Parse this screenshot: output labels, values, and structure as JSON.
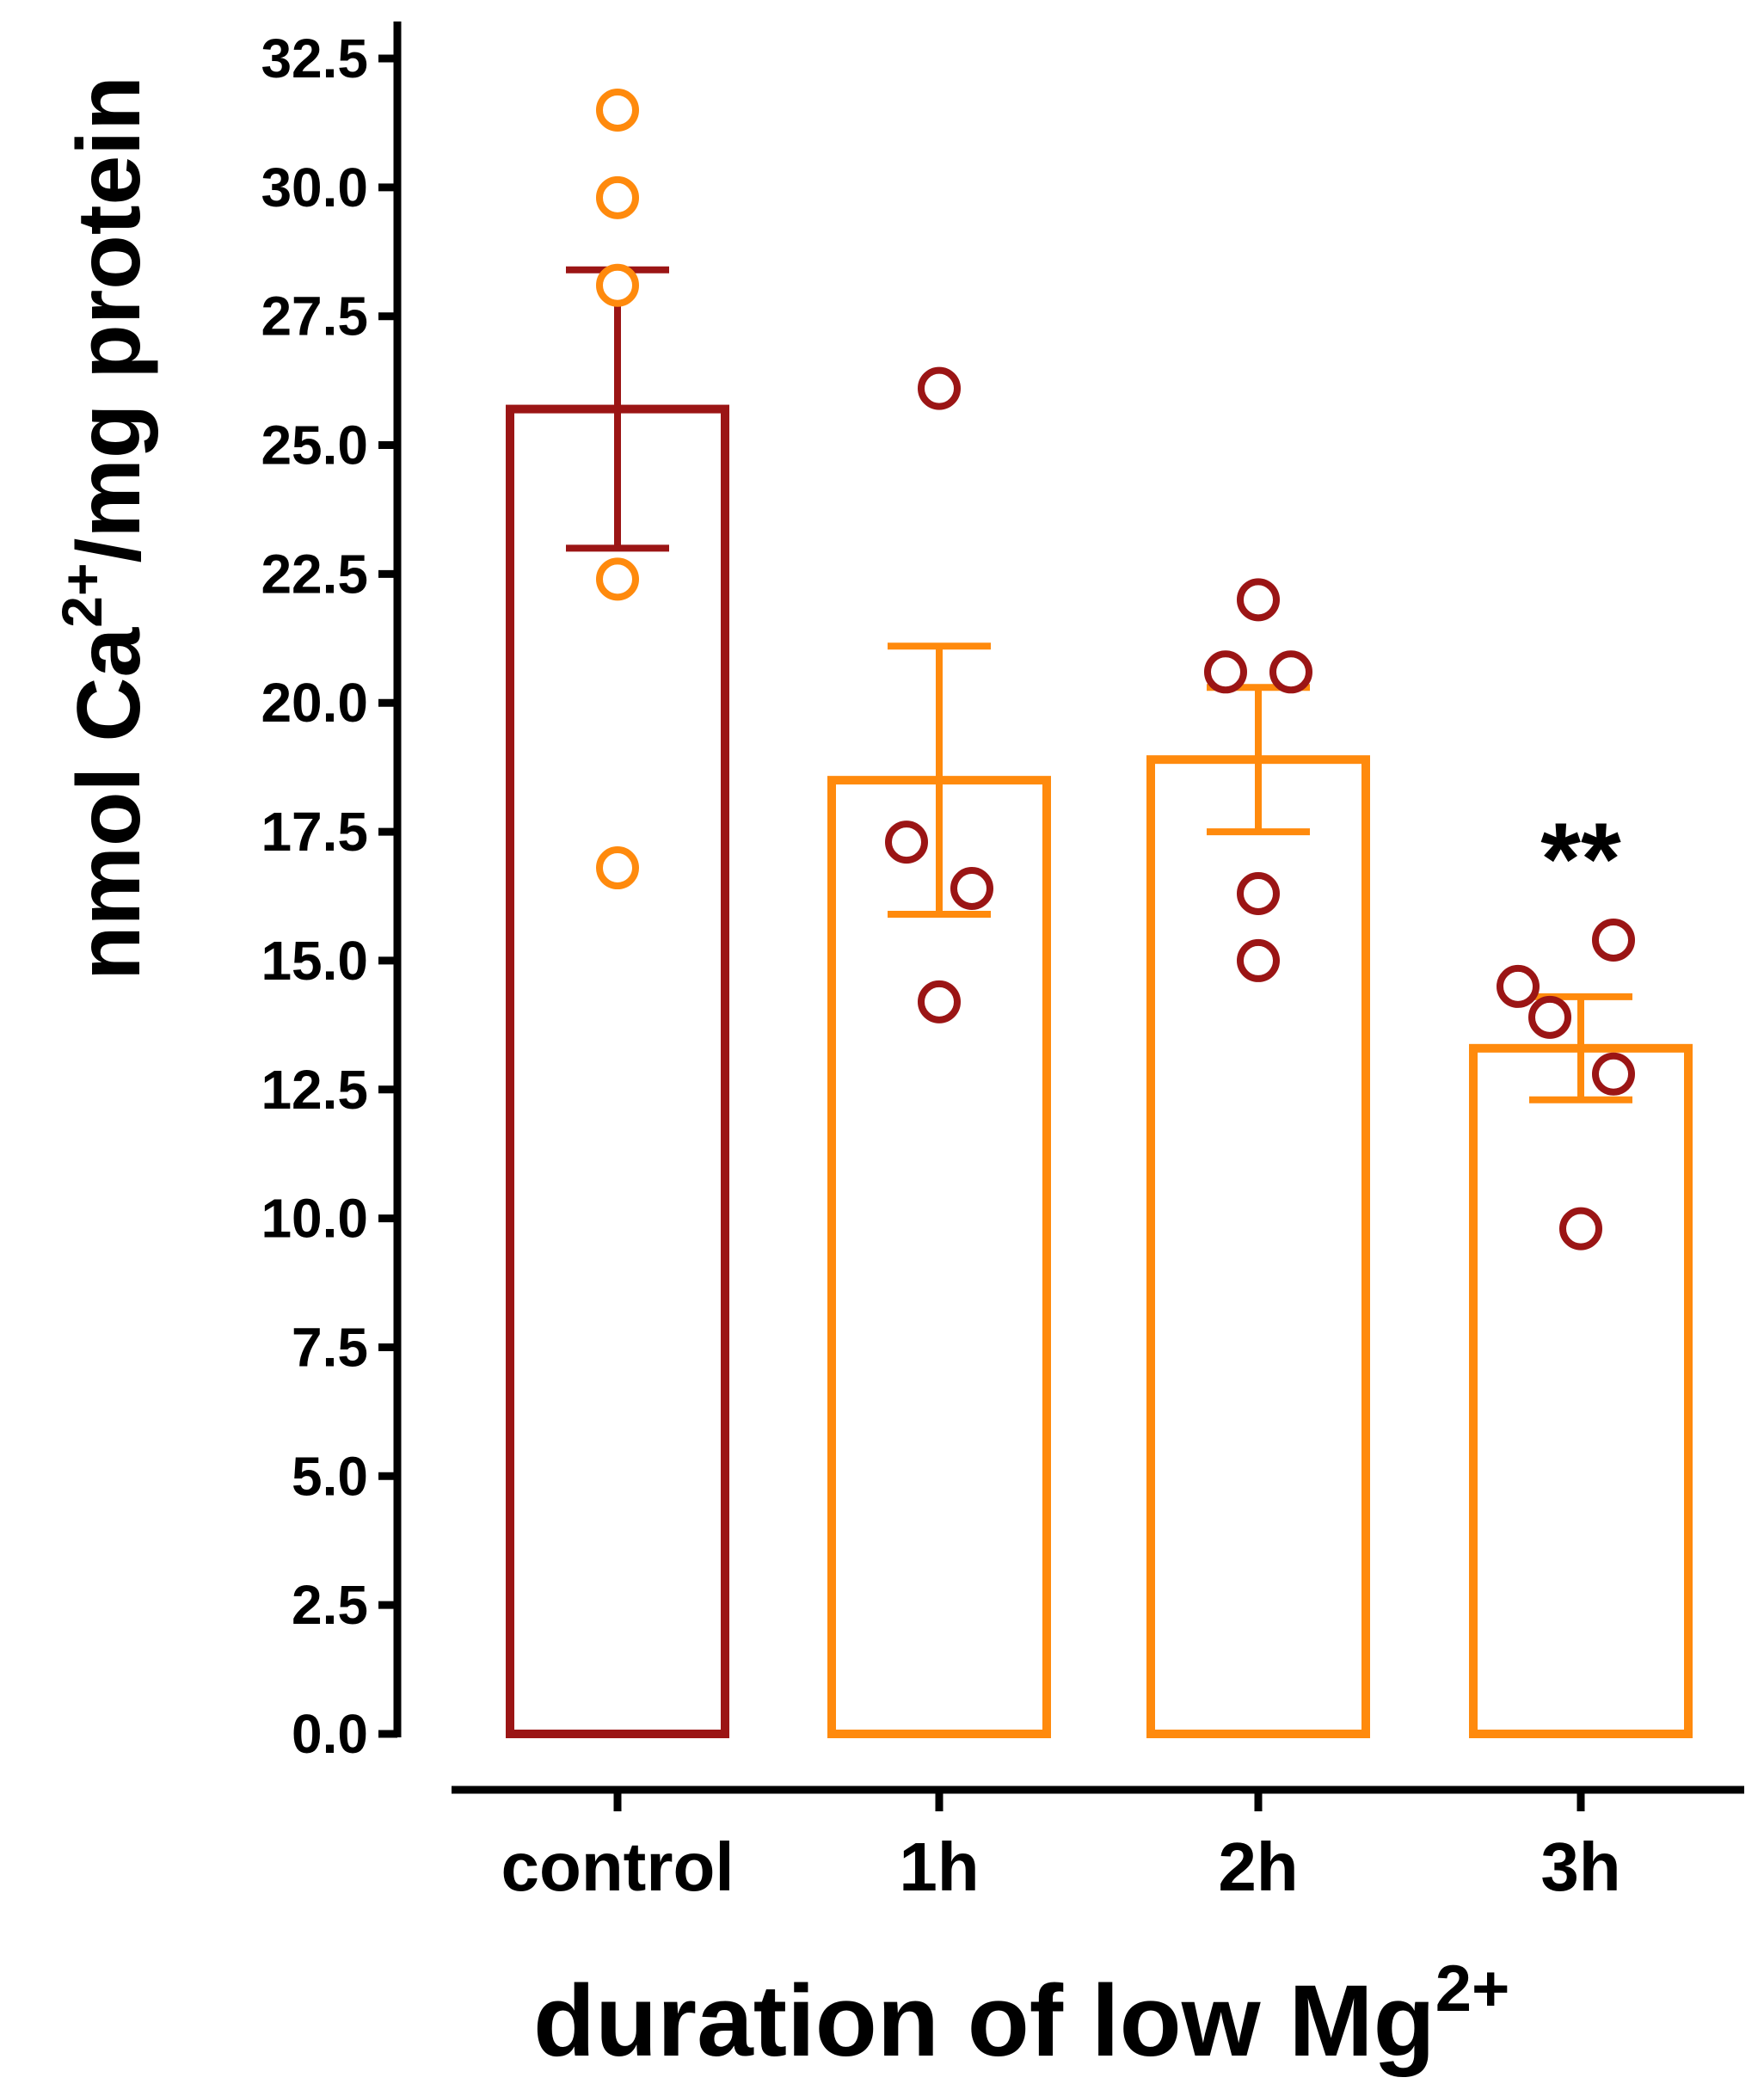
{
  "chart_data": {
    "type": "bar",
    "ylabel": {
      "base": "nmol Ca",
      "sup": "2+",
      "tail": "/mg protein"
    },
    "xlabel": {
      "base": "duration of low Mg",
      "sup": "2+"
    },
    "ylim": [
      0,
      32.5
    ],
    "yticks": [
      "0.0",
      "2.5",
      "5.0",
      "7.5",
      "10.0",
      "12.5",
      "15.0",
      "17.5",
      "20.0",
      "22.5",
      "25.0",
      "27.5",
      "30.0",
      "32.5"
    ],
    "categories": [
      "control",
      "1h",
      "2h",
      "3h"
    ],
    "values": [
      25.7,
      18.5,
      18.9,
      13.3
    ],
    "errors_low": [
      23.0,
      15.9,
      17.5,
      12.3
    ],
    "errors_high": [
      28.4,
      21.1,
      20.3,
      14.3
    ],
    "points": [
      [
        31.5,
        29.8,
        28.1,
        22.4,
        16.8
      ],
      [
        26.1,
        17.3,
        16.4,
        14.2
      ],
      [
        22.0,
        20.6,
        20.6,
        16.3,
        15.0
      ],
      [
        15.4,
        14.5,
        13.9,
        12.8,
        9.8
      ]
    ],
    "bar_colors": [
      "#9b1515",
      "#ff8a0d",
      "#ff8a0d",
      "#ff8a0d"
    ],
    "point_colors": [
      "#ff8a0d",
      "#9b1515",
      "#9b1515",
      "#9b1515"
    ],
    "significance": [
      "",
      "",
      "",
      "**"
    ]
  }
}
